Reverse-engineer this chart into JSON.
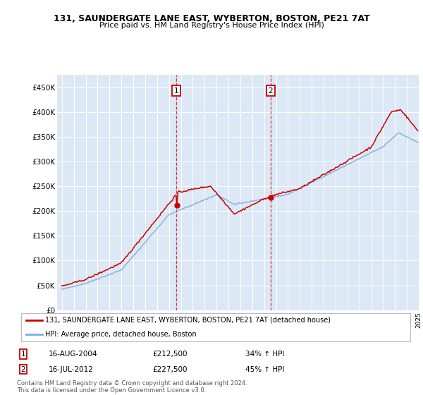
{
  "title_line1": "131, SAUNDERGATE LANE EAST, WYBERTON, BOSTON, PE21 7AT",
  "title_line2": "Price paid vs. HM Land Registry's House Price Index (HPI)",
  "legend_label1": "131, SAUNDERGATE LANE EAST, WYBERTON, BOSTON, PE21 7AT (detached house)",
  "legend_label2": "HPI: Average price, detached house, Boston",
  "sale1_date": "16-AUG-2004",
  "sale1_price": 212500,
  "sale1_hpi_pct": "34% ↑ HPI",
  "sale2_date": "16-JUL-2012",
  "sale2_price": 227500,
  "sale2_hpi_pct": "45% ↑ HPI",
  "property_color": "#cc0000",
  "hpi_color": "#7aaadd",
  "vline_color": "#cc0000",
  "background_chart": "#dce8f5",
  "footer_text": "Contains HM Land Registry data © Crown copyright and database right 2024.\nThis data is licensed under the Open Government Licence v3.0.",
  "ylim_min": 0,
  "ylim_max": 475000,
  "yticks": [
    0,
    50000,
    100000,
    150000,
    200000,
    250000,
    300000,
    350000,
    400000,
    450000
  ],
  "ytick_labels": [
    "£0",
    "£50K",
    "£100K",
    "£150K",
    "£200K",
    "£250K",
    "£300K",
    "£350K",
    "£400K",
    "£450K"
  ],
  "sale1_year_f": 2004.625,
  "sale2_year_f": 2012.542,
  "xmin": 1994.6,
  "xmax": 2025.0
}
